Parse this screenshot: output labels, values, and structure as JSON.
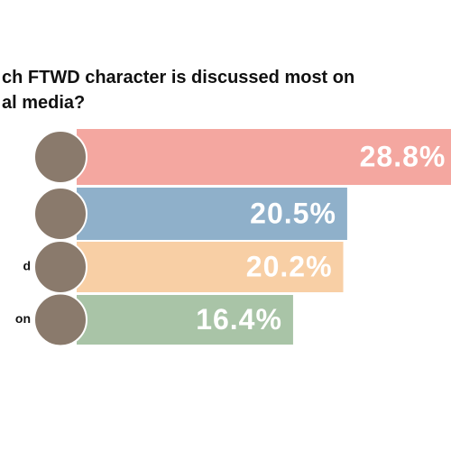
{
  "chart_data": {
    "type": "bar",
    "orientation": "horizontal",
    "title": [
      "ch FTWD character is discussed most on",
      "al media?"
    ],
    "categories": [
      null,
      null,
      "d",
      "on"
    ],
    "values": [
      28.8,
      20.5,
      20.2,
      16.4
    ],
    "value_labels": [
      "28.8%",
      "20.5%",
      "20.2%",
      "16.4%"
    ],
    "colors": [
      "#f4a7a0",
      "#8fb0ca",
      "#f8cfa5",
      "#a9c4a7"
    ]
  }
}
